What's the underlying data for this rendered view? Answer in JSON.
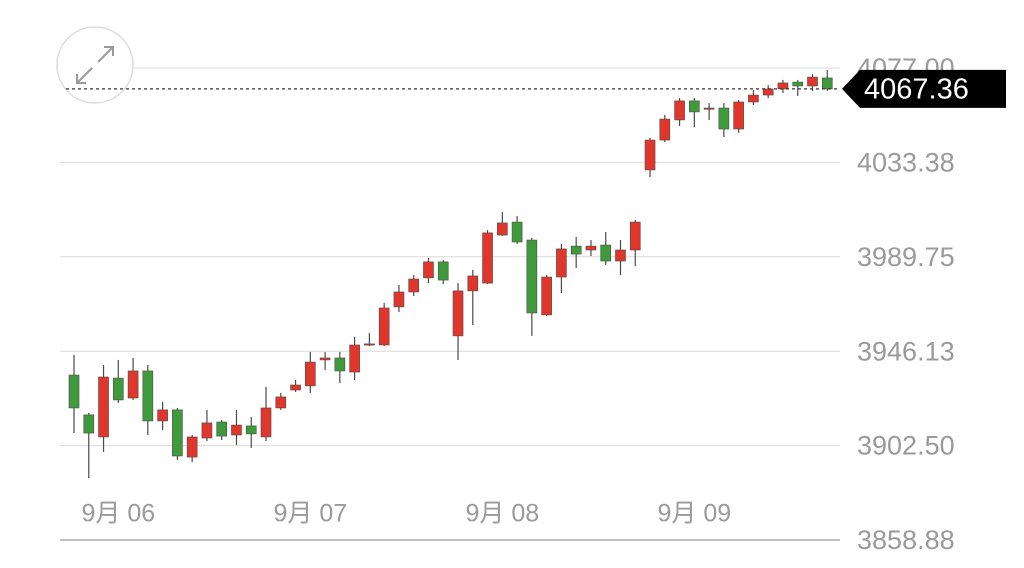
{
  "chart_data": {
    "type": "candlestick",
    "categories": [
      null,
      null,
      null,
      "9月 06",
      null,
      null,
      null,
      null,
      null,
      null,
      null,
      null,
      null,
      null,
      null,
      null,
      "9月 07",
      null,
      null,
      null,
      null,
      null,
      null,
      null,
      null,
      null,
      null,
      null,
      null,
      "9月 08",
      null,
      null,
      null,
      null,
      null,
      null,
      null,
      null,
      null,
      null,
      null,
      null,
      "9月 09",
      null,
      null,
      null,
      null,
      null,
      null,
      null,
      null,
      null
    ],
    "open": [
      3935.1,
      3916.7,
      3906.5,
      3933.7,
      3924.5,
      3937.0,
      3913.9,
      3919.0,
      3897.2,
      3906.0,
      3913.4,
      3907.4,
      3911.6,
      3906.5,
      3919.9,
      3928.2,
      3930.1,
      3942.1,
      3943.0,
      3936.5,
      3949.0,
      3949.0,
      3966.6,
      3973.5,
      3980.0,
      3987.4,
      3953.2,
      3974.0,
      3977.6,
      3999.8,
      4005.8,
      3997.5,
      3962.9,
      3980.4,
      3994.7,
      3992.9,
      3995.2,
      3987.8,
      3992.9,
      4029.9,
      4043.7,
      4053.0,
      4061.8,
      4058.1,
      4058.5,
      4048.8,
      4061.3,
      4064.5,
      4067.3,
      4070.5,
      4068.7,
      4072.4
    ],
    "high": [
      3944.4,
      3917.6,
      3939.8,
      3942.1,
      3943.0,
      3939.8,
      3922.7,
      3919.9,
      3907.4,
      3919.0,
      3914.3,
      3919.0,
      3915.7,
      3929.6,
      3926.8,
      3932.8,
      3945.8,
      3945.8,
      3945.8,
      3952.7,
      3954.5,
      3968.4,
      3976.7,
      3981.3,
      3989.2,
      3988.3,
      3977.6,
      3983.7,
      4002.1,
      4010.5,
      4008.6,
      3998.4,
      3981.3,
      3995.7,
      3998.9,
      3997.5,
      4001.2,
      3997.5,
      4006.8,
      4044.7,
      4055.3,
      4063.1,
      4063.1,
      4060.8,
      4060.8,
      4062.2,
      4066.8,
      4069.1,
      4071.5,
      4071.5,
      4074.2,
      4076.1
    ],
    "low": [
      3908.3,
      3887.5,
      3899.6,
      3922.2,
      3923.6,
      3907.4,
      3909.7,
      3895.9,
      3894.9,
      3904.6,
      3905.1,
      3902.8,
      3901.4,
      3904.6,
      3919.0,
      3927.3,
      3926.8,
      3937.4,
      3931.4,
      3932.8,
      3948.5,
      3948.5,
      3964.2,
      3971.6,
      3977.6,
      3977.2,
      3942.1,
      3958.2,
      3977.2,
      3999.4,
      3995.7,
      3953.2,
      3962.4,
      3973.0,
      3984.6,
      3990.1,
      3986.0,
      3981.3,
      3985.5,
      4026.6,
      4042.8,
      4050.2,
      4049.7,
      4053.0,
      4045.1,
      4047.0,
      4059.9,
      4063.1,
      4065.4,
      4064.1,
      4066.4,
      4066.4
    ],
    "close": [
      3919.9,
      3908.3,
      3934.2,
      3923.6,
      3937.0,
      3913.9,
      3919.0,
      3897.7,
      3906.5,
      3913.0,
      3906.9,
      3912.0,
      3907.9,
      3919.9,
      3925.0,
      3930.5,
      3941.1,
      3943.0,
      3937.0,
      3949.0,
      3949.5,
      3966.1,
      3973.5,
      3979.5,
      3987.4,
      3979.0,
      3974.0,
      3980.9,
      4000.8,
      4005.4,
      3996.6,
      3963.8,
      3980.4,
      3993.4,
      3991.0,
      3994.7,
      3987.8,
      3992.9,
      4005.8,
      4043.7,
      4053.4,
      4061.8,
      4056.7,
      4058.5,
      4048.8,
      4061.3,
      4064.5,
      4067.3,
      4070.1,
      4068.7,
      4072.8,
      4067.36
    ],
    "up_color": "#e0362c",
    "down_color": "#3f9a3c",
    "last_price": 4067.36,
    "ylim": [
      3858.88,
      4077.0
    ],
    "yticks": [
      3858.88,
      {
        "value": 3902.5,
        "label": "3902.50"
      },
      3946.13,
      {
        "value": 3989.75,
        "label": "3989.75"
      },
      4033.38,
      {
        "value": 4077.0,
        "label": "4077.00"
      }
    ],
    "grid": true
  }
}
